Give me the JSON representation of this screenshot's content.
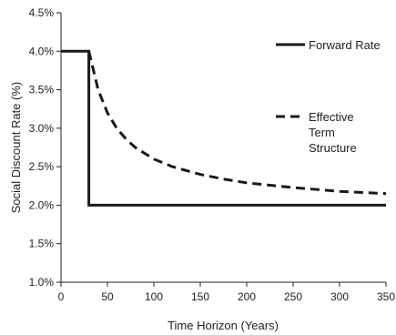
{
  "chart_data": {
    "type": "line",
    "title": "",
    "xlabel": "Time Horizon (Years)",
    "ylabel": "Social Discount Rate (%)",
    "xlim": [
      0,
      350
    ],
    "ylim": [
      1.0,
      4.5
    ],
    "x_ticks": [
      0,
      50,
      100,
      150,
      200,
      250,
      300,
      350
    ],
    "y_ticks": [
      1.0,
      1.5,
      2.0,
      2.5,
      3.0,
      3.5,
      4.0,
      4.5
    ],
    "x_tick_labels": [
      "0",
      "50",
      "100",
      "150",
      "200",
      "250",
      "300",
      "350"
    ],
    "y_tick_labels": [
      "1.0%",
      "1.5%",
      "2.0%",
      "2.5%",
      "3.0%",
      "3.5%",
      "4.0%",
      "4.5%"
    ],
    "grid": false,
    "legend_position": "right",
    "series": [
      {
        "name": "Forward Rate",
        "style": "solid",
        "color": "#1a1a1a",
        "x": [
          0,
          30,
          30,
          350
        ],
        "y": [
          4.0,
          4.0,
          2.0,
          2.0
        ]
      },
      {
        "name": "Effective Term Structure",
        "legend_lines": [
          "Effective",
          "Term",
          "Structure"
        ],
        "style": "dashed",
        "color": "#1a1a1a",
        "x": [
          30,
          40,
          50,
          60,
          70,
          80,
          100,
          120,
          150,
          175,
          200,
          250,
          300,
          350
        ],
        "y": [
          4.0,
          3.5,
          3.2,
          3.0,
          2.86,
          2.75,
          2.6,
          2.5,
          2.4,
          2.34,
          2.29,
          2.23,
          2.18,
          2.15
        ]
      }
    ]
  }
}
